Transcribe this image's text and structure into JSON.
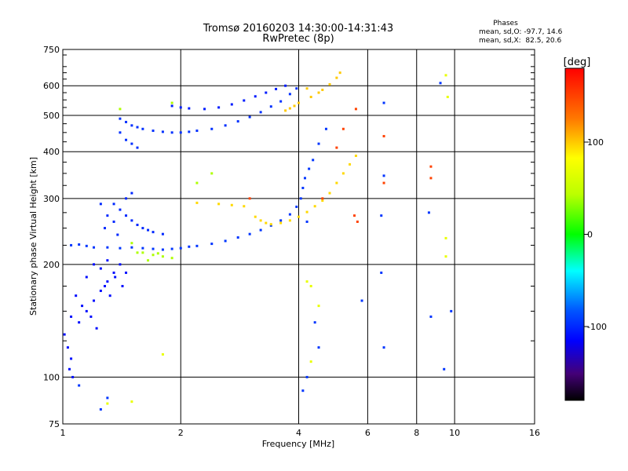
{
  "chart_data": {
    "type": "scatter",
    "title": "Tromsø 20160203 14:30:00-14:31:43",
    "subtitle": "RwPretec (8p)",
    "xlabel": "Frequency [MHz]",
    "ylabel": "Stationary phase Virtual Height [km]",
    "x_scale": "log2",
    "y_scale": "log",
    "xlim": [
      1,
      16
    ],
    "ylim": [
      75,
      750
    ],
    "x_ticks": [
      1,
      2,
      4,
      6,
      8,
      10,
      16
    ],
    "y_ticks": [
      75,
      100,
      200,
      300,
      400,
      500,
      600,
      750
    ],
    "grid": true,
    "phase_stats": {
      "heading": "Phases",
      "line_o": "mean, sd,O: -97.7, 14.6",
      "line_x": "mean, sd,X:  82.5, 20.6"
    },
    "colorbar": {
      "label": "[deg]",
      "ticks": [
        100,
        0,
        -100
      ],
      "range": [
        -180,
        180
      ]
    },
    "series": [
      {
        "points": [
          [
            1.05,
            225
          ],
          [
            1.1,
            226
          ],
          [
            1.15,
            224
          ],
          [
            1.2,
            222
          ],
          [
            1.3,
            222
          ],
          [
            1.4,
            221
          ],
          [
            1.5,
            222
          ],
          [
            1.6,
            221
          ],
          [
            1.7,
            220
          ],
          [
            1.8,
            219
          ],
          [
            1.9,
            220
          ],
          [
            2.0,
            221
          ],
          [
            2.1,
            223
          ],
          [
            2.2,
            224
          ],
          [
            2.4,
            227
          ],
          [
            2.6,
            231
          ],
          [
            2.8,
            236
          ],
          [
            3.0,
            241
          ],
          [
            3.2,
            247
          ],
          [
            3.4,
            254
          ],
          [
            3.6,
            262
          ],
          [
            3.8,
            272
          ],
          [
            3.95,
            285
          ],
          [
            4.05,
            300
          ],
          [
            4.1,
            320
          ],
          [
            4.15,
            340
          ],
          [
            4.25,
            360
          ],
          [
            4.35,
            380
          ],
          [
            4.5,
            420
          ],
          [
            4.7,
            460
          ]
        ],
        "phase": -95
      },
      {
        "points": [
          [
            1.35,
            290
          ],
          [
            1.4,
            280
          ],
          [
            1.45,
            270
          ],
          [
            1.5,
            262
          ],
          [
            1.55,
            255
          ],
          [
            1.6,
            250
          ],
          [
            1.65,
            247
          ],
          [
            1.7,
            244
          ],
          [
            1.8,
            241
          ],
          [
            1.45,
            300
          ],
          [
            1.5,
            310
          ],
          [
            1.35,
            260
          ],
          [
            1.3,
            270
          ],
          [
            1.25,
            290
          ],
          [
            1.28,
            250
          ],
          [
            1.38,
            240
          ]
        ],
        "phase": -100
      },
      {
        "points": [
          [
            1.4,
            490
          ],
          [
            1.45,
            480
          ],
          [
            1.5,
            470
          ],
          [
            1.55,
            465
          ],
          [
            1.6,
            460
          ],
          [
            1.7,
            455
          ],
          [
            1.8,
            452
          ],
          [
            1.9,
            450
          ],
          [
            2.0,
            450
          ],
          [
            2.1,
            452
          ],
          [
            2.2,
            455
          ],
          [
            2.4,
            460
          ],
          [
            2.6,
            470
          ],
          [
            2.8,
            482
          ],
          [
            3.0,
            495
          ],
          [
            3.2,
            510
          ],
          [
            3.4,
            528
          ],
          [
            3.6,
            545
          ],
          [
            3.8,
            570
          ],
          [
            3.95,
            590
          ],
          [
            1.45,
            430
          ],
          [
            1.5,
            420
          ],
          [
            1.55,
            410
          ],
          [
            1.4,
            450
          ]
        ],
        "phase": -97
      },
      {
        "points": [
          [
            1.9,
            530
          ],
          [
            2.0,
            525
          ],
          [
            2.1,
            522
          ],
          [
            2.3,
            520
          ],
          [
            2.5,
            525
          ],
          [
            2.7,
            535
          ],
          [
            2.9,
            548
          ],
          [
            3.1,
            562
          ],
          [
            3.3,
            575
          ],
          [
            3.5,
            588
          ],
          [
            3.7,
            600
          ]
        ],
        "phase": -105
      },
      {
        "points": [
          [
            1.01,
            130
          ],
          [
            1.03,
            120
          ],
          [
            1.05,
            112
          ],
          [
            1.04,
            105
          ],
          [
            1.06,
            100
          ],
          [
            1.1,
            140
          ],
          [
            1.15,
            150
          ],
          [
            1.2,
            160
          ],
          [
            1.25,
            170
          ],
          [
            1.3,
            180
          ],
          [
            1.35,
            190
          ],
          [
            1.4,
            200
          ],
          [
            1.12,
            155
          ],
          [
            1.18,
            145
          ],
          [
            1.22,
            135
          ],
          [
            1.28,
            175
          ],
          [
            1.32,
            165
          ],
          [
            1.36,
            185
          ],
          [
            1.42,
            175
          ],
          [
            1.45,
            190
          ],
          [
            1.25,
            195
          ],
          [
            1.3,
            205
          ],
          [
            1.2,
            200
          ],
          [
            1.15,
            185
          ],
          [
            1.08,
            165
          ],
          [
            1.05,
            145
          ]
        ],
        "phase": -110
      },
      {
        "points": [
          [
            3.6,
            258
          ],
          [
            3.8,
            262
          ],
          [
            4.0,
            268
          ],
          [
            4.2,
            276
          ],
          [
            4.4,
            286
          ],
          [
            4.6,
            296
          ],
          [
            4.8,
            310
          ],
          [
            5.0,
            330
          ],
          [
            5.2,
            350
          ],
          [
            5.4,
            370
          ],
          [
            5.6,
            390
          ],
          [
            3.1,
            268
          ],
          [
            3.2,
            262
          ],
          [
            3.3,
            258
          ],
          [
            3.4,
            256
          ],
          [
            2.5,
            290
          ],
          [
            2.7,
            288
          ],
          [
            2.9,
            286
          ],
          [
            2.2,
            292
          ]
        ],
        "phase": 95
      },
      {
        "points": [
          [
            3.7,
            515
          ],
          [
            3.8,
            522
          ],
          [
            3.9,
            530
          ],
          [
            4.0,
            540
          ],
          [
            4.3,
            560
          ],
          [
            4.6,
            585
          ],
          [
            4.8,
            605
          ],
          [
            5.0,
            630
          ],
          [
            5.1,
            650
          ],
          [
            4.2,
            590
          ],
          [
            4.5,
            575
          ]
        ],
        "phase": 100
      },
      {
        "points": [
          [
            1.5,
            228
          ],
          [
            1.6,
            215
          ],
          [
            1.7,
            212
          ],
          [
            1.8,
            210
          ],
          [
            1.9,
            208
          ],
          [
            1.65,
            205
          ],
          [
            1.75,
            214
          ],
          [
            1.55,
            215
          ],
          [
            2.4,
            350
          ],
          [
            2.2,
            330
          ],
          [
            1.4,
            520
          ],
          [
            1.9,
            540
          ]
        ],
        "phase": 40
      },
      {
        "points": [
          [
            5.6,
            520
          ],
          [
            5.55,
            270
          ],
          [
            5.65,
            260
          ],
          [
            6.6,
            440
          ],
          [
            6.6,
            330
          ],
          [
            8.7,
            365
          ],
          [
            8.7,
            340
          ],
          [
            4.6,
            300
          ],
          [
            3.0,
            300
          ],
          [
            5.2,
            460
          ],
          [
            5.0,
            410
          ]
        ],
        "phase": 150
      },
      {
        "points": [
          [
            6.6,
            540
          ],
          [
            6.6,
            345
          ],
          [
            6.5,
            270
          ],
          [
            6.5,
            190
          ],
          [
            6.6,
            120
          ],
          [
            8.6,
            275
          ],
          [
            8.7,
            145
          ],
          [
            9.2,
            610
          ],
          [
            9.4,
            105
          ],
          [
            9.8,
            150
          ],
          [
            4.2,
            260
          ],
          [
            4.4,
            140
          ],
          [
            4.5,
            120
          ],
          [
            5.8,
            160
          ],
          [
            4.1,
            92
          ],
          [
            4.2,
            100
          ],
          [
            1.1,
            95
          ],
          [
            1.3,
            88
          ],
          [
            1.25,
            82
          ]
        ],
        "phase": -95
      },
      {
        "points": [
          [
            9.5,
            640
          ],
          [
            9.6,
            560
          ],
          [
            9.5,
            235
          ],
          [
            9.5,
            210
          ],
          [
            4.2,
            180
          ],
          [
            4.3,
            175
          ],
          [
            4.5,
            155
          ],
          [
            4.3,
            110
          ],
          [
            1.3,
            85
          ],
          [
            1.5,
            86
          ],
          [
            1.8,
            115
          ]
        ],
        "phase": 70
      }
    ]
  }
}
